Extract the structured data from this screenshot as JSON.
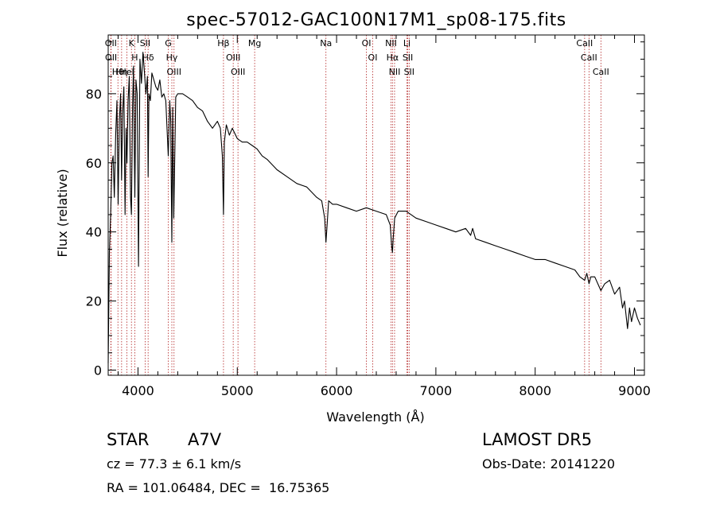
{
  "chart_data": {
    "type": "line",
    "title": "spec-57012-GAC100N17M1_sp08-175.fits",
    "xlabel": "Wavelength (Å)",
    "ylabel": "Flux (relative)",
    "xlim": [
      3700,
      9100
    ],
    "ylim": [
      -1.5,
      97
    ],
    "xticks": [
      4000,
      5000,
      6000,
      7000,
      8000,
      9000
    ],
    "yticks": [
      0,
      20,
      40,
      60,
      80
    ],
    "grid": false,
    "spectral_lines": [
      {
        "label": "Hθ",
        "wave": 3798
      },
      {
        "label": "OII",
        "wave": 3727
      },
      {
        "label": "OII",
        "wave": 3729
      },
      {
        "label": "Hη",
        "wave": 3835
      },
      {
        "label": "HeI",
        "wave": 3889
      },
      {
        "label": "K",
        "wave": 3934
      },
      {
        "label": "H",
        "wave": 3968
      },
      {
        "label": "Hδ",
        "wave": 4102
      },
      {
        "label": "SII",
        "wave": 4072
      },
      {
        "label": "OIII",
        "wave": 4363
      },
      {
        "label": "Hγ",
        "wave": 4341
      },
      {
        "label": "G",
        "wave": 4305
      },
      {
        "label": "OIII",
        "wave": 5007
      },
      {
        "label": "OIII",
        "wave": 4959
      },
      {
        "label": "Hβ",
        "wave": 4861
      },
      {
        "label": "Mg",
        "wave": 5175
      },
      {
        "label": "Na",
        "wave": 5893
      },
      {
        "label": "OI",
        "wave": 6300
      },
      {
        "label": "OI",
        "wave": 6364
      },
      {
        "label": "Hα",
        "wave": 6563
      },
      {
        "label": "NII",
        "wave": 6548
      },
      {
        "label": "NII",
        "wave": 6584
      },
      {
        "label": "SII",
        "wave": 6717
      },
      {
        "label": "SII",
        "wave": 6731
      },
      {
        "label": "Li",
        "wave": 6708
      },
      {
        "label": "CaII",
        "wave": 8498
      },
      {
        "label": "CaII",
        "wave": 8542
      },
      {
        "label": "CaII",
        "wave": 8662
      }
    ],
    "series": [
      {
        "x": [
          3700,
          3712,
          3725,
          3738,
          3750,
          3762,
          3775,
          3788,
          3800,
          3812,
          3825,
          3835,
          3845,
          3858,
          3870,
          3880,
          3889,
          3900,
          3912,
          3925,
          3934,
          3945,
          3955,
          3968,
          3980,
          3992,
          4005,
          4020,
          4035,
          4050,
          4065,
          4080,
          4095,
          4102,
          4110,
          4125,
          4140,
          4160,
          4180,
          4200,
          4220,
          4240,
          4260,
          4280,
          4305,
          4320,
          4330,
          4341,
          4350,
          4360,
          4380,
          4400,
          4450,
          4500,
          4550,
          4600,
          4650,
          4700,
          4750,
          4800,
          4830,
          4850,
          4861,
          4870,
          4890,
          4920,
          4950,
          5000,
          5050,
          5100,
          5150,
          5200,
          5250,
          5300,
          5400,
          5500,
          5600,
          5700,
          5800,
          5850,
          5880,
          5893,
          5900,
          5920,
          5960,
          6000,
          6100,
          6200,
          6300,
          6400,
          6500,
          6540,
          6555,
          6563,
          6570,
          6585,
          6620,
          6700,
          6800,
          6900,
          7000,
          7100,
          7200,
          7300,
          7350,
          7370,
          7400,
          7500,
          7600,
          7700,
          7800,
          7900,
          8000,
          8100,
          8200,
          8300,
          8400,
          8450,
          8498,
          8520,
          8542,
          8560,
          8600,
          8662,
          8700,
          8750,
          8800,
          8850,
          8880,
          8900,
          8930,
          8950,
          8970,
          9000,
          9030,
          9060
        ],
        "y": [
          2,
          34,
          45,
          60,
          62,
          50,
          68,
          78,
          48,
          72,
          80,
          55,
          74,
          82,
          45,
          70,
          60,
          78,
          85,
          50,
          45,
          76,
          88,
          50,
          84,
          80,
          30,
          90,
          83,
          92,
          86,
          80,
          85,
          56,
          80,
          78,
          86,
          84,
          82,
          81,
          84,
          79,
          80,
          78,
          62,
          78,
          72,
          37,
          76,
          44,
          79,
          80,
          80,
          79,
          78,
          76,
          75,
          72,
          70,
          72,
          70,
          62,
          45,
          66,
          71,
          68,
          70,
          67,
          66,
          66,
          65,
          64,
          62,
          61,
          58,
          56,
          54,
          53,
          50,
          49,
          44,
          37,
          40,
          49,
          48,
          48,
          47,
          46,
          47,
          46,
          45,
          42,
          36,
          34,
          38,
          44,
          46,
          46,
          44,
          43,
          42,
          41,
          40,
          41,
          39,
          41,
          38,
          37,
          36,
          35,
          34,
          33,
          32,
          32,
          31,
          30,
          29,
          27,
          26,
          28,
          25,
          27,
          27,
          23,
          25,
          26,
          22,
          24,
          18,
          20,
          12,
          18,
          14,
          18,
          15,
          13
        ]
      }
    ]
  },
  "info": {
    "object_class": "STAR",
    "subclass": "A7V",
    "survey": "LAMOST DR5",
    "redshift": "cz = 77.3 ± 6.1 km/s",
    "obs_date": "Obs-Date: 20141220",
    "coords": "RA = 101.06484, DEC =  16.75365"
  }
}
